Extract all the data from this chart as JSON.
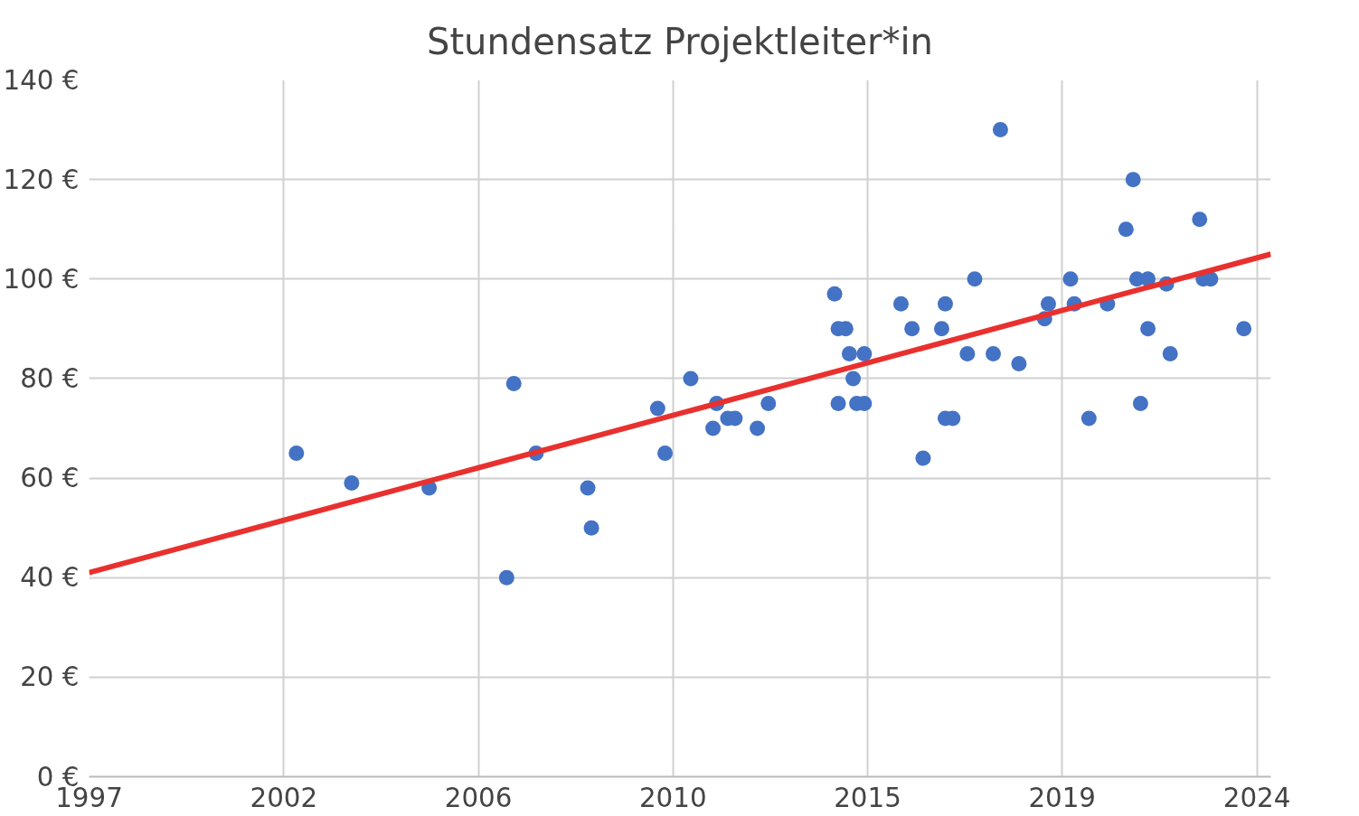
{
  "chart_data": {
    "type": "scatter",
    "title": "Stundensatz Projektleiter*in",
    "xlim": [
      "1997-08-07",
      "2024-04-25"
    ],
    "ylim": [
      0,
      140
    ],
    "xticks": [
      {
        "value": "1997-08-07",
        "label": "1997"
      },
      {
        "value": "2002-01-01",
        "label": "2002"
      },
      {
        "value": "2006-05-27",
        "label": "2006"
      },
      {
        "value": "2010-10-19",
        "label": "2010"
      },
      {
        "value": "2015-03-14",
        "label": "2015"
      },
      {
        "value": "2019-08-07",
        "label": "2019"
      },
      {
        "value": "2024-01-01",
        "label": "2024"
      }
    ],
    "yticks": [
      {
        "value": 0,
        "label": "0 €"
      },
      {
        "value": 20,
        "label": "20 €"
      },
      {
        "value": 40,
        "label": "40 €"
      },
      {
        "value": 60,
        "label": "60 €"
      },
      {
        "value": 80,
        "label": "80 €"
      },
      {
        "value": 100,
        "label": "100 €"
      },
      {
        "value": 120,
        "label": "120 €"
      },
      {
        "value": 140,
        "label": "140 €"
      }
    ],
    "grid": true,
    "series": [
      {
        "color": "#4472c4",
        "marker": "circle",
        "x": [
          "2002-04",
          "2003-07",
          "2005-04",
          "2007-01",
          "2007-03",
          "2007-09",
          "2008-11",
          "2008-12",
          "2010-06",
          "2010-08",
          "2011-03",
          "2011-09",
          "2011-10",
          "2012-01",
          "2012-03",
          "2012-09",
          "2012-12",
          "2014-06",
          "2014-07",
          "2014-07",
          "2014-09",
          "2014-10",
          "2014-11",
          "2014-12",
          "2015-02",
          "2015-02",
          "2015-12",
          "2016-03",
          "2016-06",
          "2016-11",
          "2016-12",
          "2016-12",
          "2017-02",
          "2017-06",
          "2017-08",
          "2018-01",
          "2018-03",
          "2018-08",
          "2019-03",
          "2019-04",
          "2019-10",
          "2019-11",
          "2020-03",
          "2020-08",
          "2021-01",
          "2021-03",
          "2021-04",
          "2021-05",
          "2021-07",
          "2021-07",
          "2021-12",
          "2022-01",
          "2022-09",
          "2022-10",
          "2022-12",
          "2023-09"
        ],
        "values": [
          65,
          59,
          58,
          40,
          79,
          65,
          58,
          50,
          74,
          65,
          80,
          70,
          75,
          72,
          72,
          70,
          75,
          97,
          90,
          75,
          90,
          85,
          80,
          75,
          75,
          85,
          95,
          90,
          64,
          90,
          95,
          72,
          72,
          85,
          100,
          85,
          130,
          83,
          92,
          95,
          100,
          95,
          72,
          95,
          110,
          120,
          100,
          75,
          100,
          90,
          99,
          85,
          112,
          100,
          100,
          90
        ]
      },
      {
        "type": "line",
        "marker": "none",
        "color": "#e8312f",
        "x": [
          "1997-08-07",
          "2024-04-25"
        ],
        "values": [
          41,
          105
        ]
      }
    ]
  }
}
